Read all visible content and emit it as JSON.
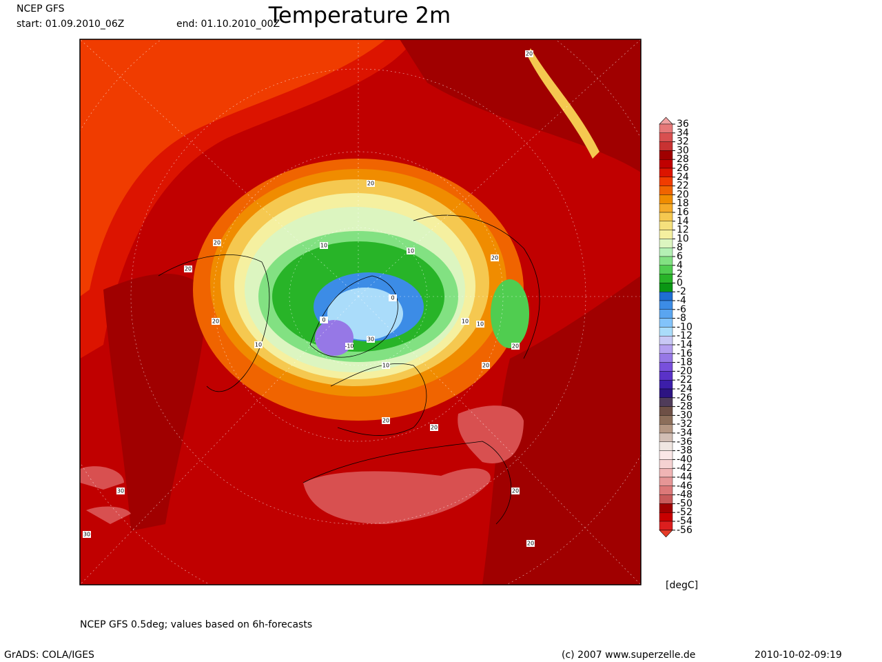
{
  "header": {
    "model": "NCEP GFS",
    "start": "start: 01.09.2010_06Z",
    "end": "end: 01.10.2010_00Z",
    "title": "Temperature 2m"
  },
  "map": {
    "contour_labels": [
      "20",
      "20",
      "20",
      "20",
      "10",
      "10",
      "10",
      "0",
      "0",
      "-10",
      "10",
      "10",
      "30",
      "20",
      "20",
      "20",
      "20",
      "20",
      "10",
      "30",
      "30",
      "20",
      "20",
      "20"
    ]
  },
  "colorbar": {
    "unit": "[degC]",
    "levels": [
      36,
      34,
      32,
      30,
      28,
      26,
      24,
      22,
      20,
      18,
      16,
      14,
      12,
      10,
      8,
      6,
      4,
      2,
      0,
      -2,
      -4,
      -6,
      -8,
      -10,
      -12,
      -14,
      -16,
      -18,
      -20,
      -22,
      -24,
      -26,
      -28,
      -30,
      -32,
      -34,
      -36,
      -38,
      -40,
      -42,
      -44,
      -46,
      -48,
      -50,
      -52,
      -54,
      -56
    ],
    "colors": [
      "#f0a0a0",
      "#e67878",
      "#d85050",
      "#c83232",
      "#a00000",
      "#c00000",
      "#dc1400",
      "#f03c00",
      "#f06400",
      "#f08c00",
      "#f5aa28",
      "#f5c850",
      "#f5e07c",
      "#f5f0a0",
      "#dcf5c0",
      "#b4f0b4",
      "#82e182",
      "#50cd50",
      "#28b428",
      "#0a9614",
      "#1e6ed2",
      "#3c8ce6",
      "#5aa5f0",
      "#82c3fa",
      "#aadcfa",
      "#c8c8f5",
      "#b4a0f0",
      "#9678e6",
      "#7850dc",
      "#5a32c8",
      "#3c1eaa",
      "#2d1482",
      "#503c5a",
      "#6e5046",
      "#8c6e5a",
      "#b49682",
      "#d2beb4",
      "#f0e6e1",
      "#fae6e6",
      "#f5d2d2",
      "#f0b4b4",
      "#e69696",
      "#dc7878",
      "#c85a5a",
      "#a00000",
      "#c80000",
      "#dc1e1e",
      "#e63c28"
    ]
  },
  "footer": {
    "note": "NCEP GFS 0.5deg; values based on 6h-forecasts",
    "software": "GrADS: COLA/IGES",
    "copyright": "(c) 2007 www.superzelle.de",
    "timestamp": "2010-10-02-09:19"
  }
}
